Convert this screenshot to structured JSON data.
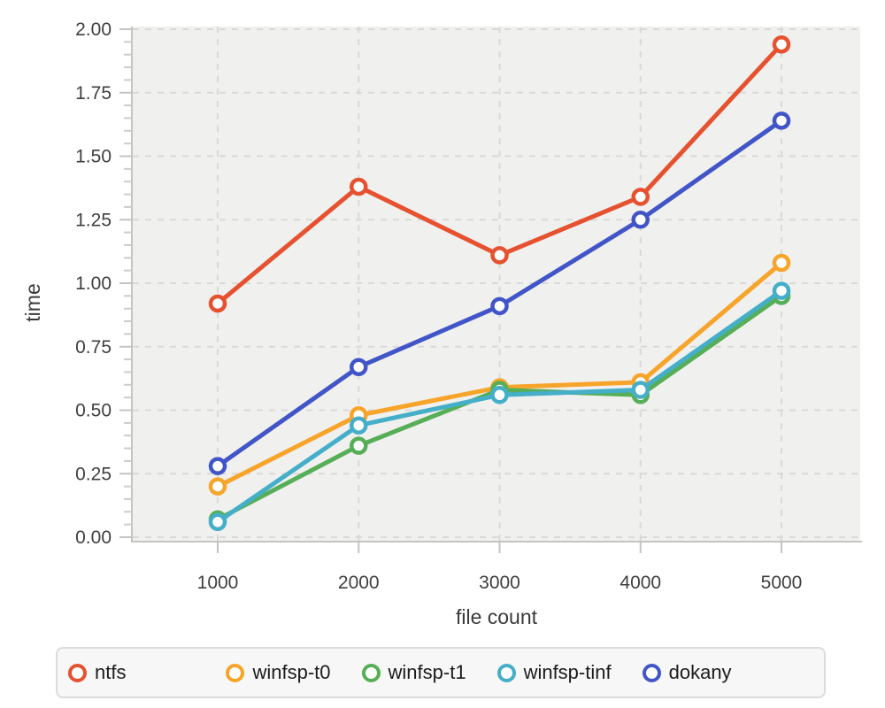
{
  "chart_data": {
    "type": "line",
    "title": "",
    "xlabel": "file count",
    "ylabel": "time",
    "x": [
      1000,
      2000,
      3000,
      4000,
      5000
    ],
    "x_tick_labels": [
      "1000",
      "2000",
      "3000",
      "4000",
      "5000"
    ],
    "y_tick_labels": [
      "0.00",
      "0.25",
      "0.50",
      "0.75",
      "1.00",
      "1.25",
      "1.50",
      "1.75",
      "2.00"
    ],
    "ylim": [
      0,
      2
    ],
    "y_major_step": 0.25,
    "y_minor_step": 0.05,
    "grid": "dashed",
    "legend_position": "bottom",
    "series": [
      {
        "name": "ntfs",
        "color": "#e6512f",
        "values": [
          0.92,
          1.38,
          1.11,
          1.34,
          1.94
        ]
      },
      {
        "name": "winfsp-t0",
        "color": "#f7a42a",
        "values": [
          0.2,
          0.48,
          0.59,
          0.61,
          1.08
        ]
      },
      {
        "name": "winfsp-t1",
        "color": "#56ae57",
        "values": [
          0.07,
          0.36,
          0.58,
          0.56,
          0.95
        ]
      },
      {
        "name": "winfsp-tinf",
        "color": "#45aec8",
        "values": [
          0.06,
          0.44,
          0.56,
          0.58,
          0.97
        ]
      },
      {
        "name": "dokany",
        "color": "#4255c8",
        "values": [
          0.28,
          0.67,
          0.91,
          1.25,
          1.64
        ]
      }
    ],
    "style": {
      "plot_bg": "#f0f0ee",
      "grid_color": "#d9d9d8",
      "axis_line_color": "#c4c4c4",
      "major_tick_color": "#c4c4c4",
      "minor_tick_color": "#cccccc",
      "tick_label_color": "#3f3f3f",
      "axis_title_color": "#3a3a3a"
    }
  }
}
